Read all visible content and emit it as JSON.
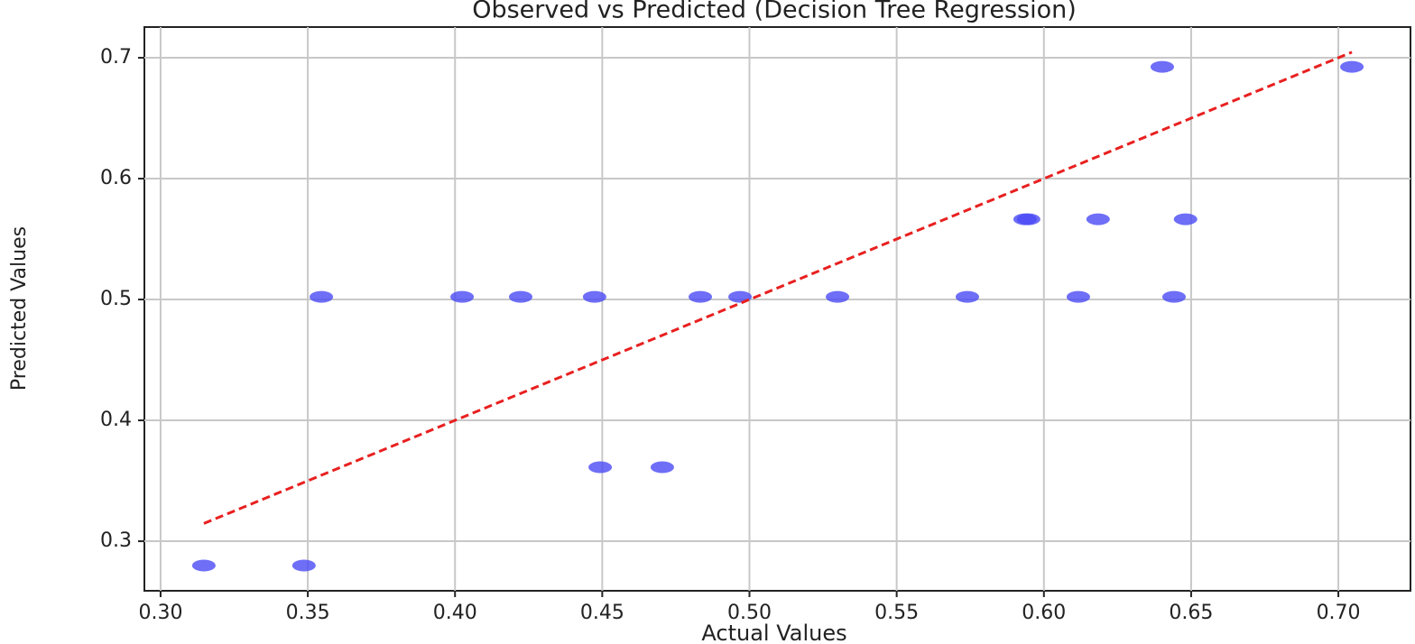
{
  "chart_data": {
    "type": "scatter",
    "title": "Observed vs Predicted (Decision Tree Regression)",
    "x_label": "Actual Values",
    "y_label": "Predicted Values",
    "xlim": [
      0.2945,
      0.7245
    ],
    "ylim": [
      0.259,
      0.7254
    ],
    "xticks": [
      {
        "value": 0.3,
        "label": "0.30"
      },
      0.35,
      {
        "value": 0.4,
        "label": "0.40"
      },
      0.45,
      {
        "value": 0.5,
        "label": "0.50"
      },
      0.55,
      {
        "value": 0.6,
        "label": "0.60"
      },
      0.65,
      {
        "value": 0.7,
        "label": "0.70"
      }
    ],
    "yticks": [
      0.3,
      0.4,
      0.5,
      0.6,
      0.7
    ],
    "grid": true,
    "points": {
      "color": "#4a4af5",
      "x": [
        0.3147,
        0.3487,
        0.3546,
        0.4024,
        0.4223,
        0.4474,
        0.4833,
        0.4968,
        0.5299,
        0.574,
        0.6117,
        0.6442,
        0.4493,
        0.4704,
        0.5936,
        0.5948,
        0.6184,
        0.6481,
        0.6402,
        0.7046
      ],
      "y": [
        0.2799,
        0.2799,
        0.5022,
        0.5022,
        0.5022,
        0.5022,
        0.5022,
        0.5022,
        0.5022,
        0.5022,
        0.5022,
        0.5022,
        0.3612,
        0.3612,
        0.5664,
        0.5664,
        0.5664,
        0.5664,
        0.6925,
        0.6925
      ]
    },
    "reference_line": {
      "color": "#e82020",
      "x": [
        0.3147,
        0.7046
      ],
      "y": [
        0.3147,
        0.7046
      ]
    }
  }
}
